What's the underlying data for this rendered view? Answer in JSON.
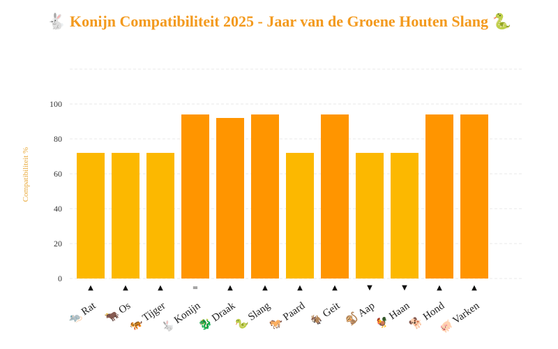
{
  "chart_data": {
    "type": "bar",
    "title": "🐇 Konijn Compatibiliteit 2025 - Jaar van de Groene Houten Slang 🐍",
    "xlabel": "",
    "ylabel": "Compatibiliteit %",
    "ylim": [
      0,
      100
    ],
    "yticks": [
      0,
      20,
      40,
      60,
      80,
      100
    ],
    "grid": true,
    "categories": [
      "🐀 Rat",
      "🐂 Os",
      "🐅 Tijger",
      "🐇 Konijn",
      "🐉 Draak",
      "🐍 Slang",
      "🐎 Paard",
      "🐐 Geit",
      "🐒 Aap",
      "🐓 Haan",
      "🐕 Hond",
      "🐖 Varken"
    ],
    "values": [
      72,
      72,
      72,
      94,
      92,
      94,
      72,
      94,
      72,
      72,
      94,
      94
    ],
    "markers": [
      "▲",
      "▲",
      "▲",
      "=",
      "▲",
      "▲",
      "▲",
      "▲",
      "▼",
      "▼",
      "▲",
      "▲"
    ],
    "colors": {
      "high": "#ff9500",
      "medium": "#fcb800",
      "grid": "#e8e8e8",
      "title": "#f39a1e",
      "ylabel": "#e8a93a"
    }
  }
}
